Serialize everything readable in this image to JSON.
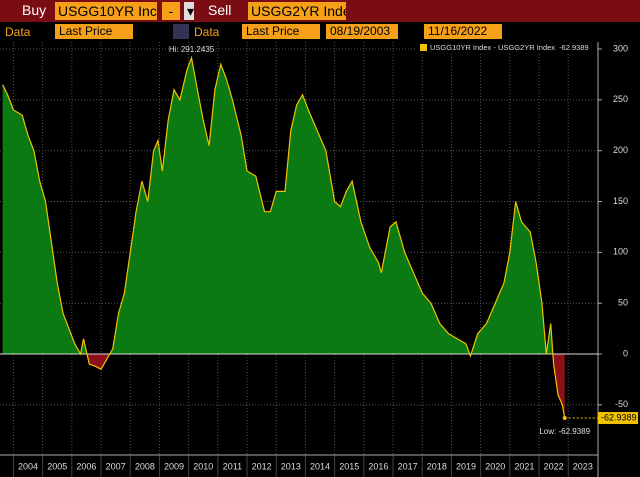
{
  "toolbar": {
    "buy_label": "Buy",
    "buy_ticker": "USGG10YR Inc",
    "operator": "-",
    "sell_label": "Sell",
    "sell_ticker": "USGG2YR Inde",
    "data_label_1": "Data",
    "field_1": "Last Price",
    "data_label_2": "Data",
    "field_2": "Last Price",
    "start_date": "08/19/2003",
    "end_date": "11/16/2022"
  },
  "chart_data": {
    "type": "area",
    "x": [
      2003.63,
      2003.8,
      2004.0,
      2004.3,
      2004.5,
      2004.7,
      2004.9,
      2005.1,
      2005.3,
      2005.5,
      2005.7,
      2005.9,
      2006.1,
      2006.3,
      2006.4,
      2006.6,
      2006.8,
      2007.0,
      2007.2,
      2007.4,
      2007.6,
      2007.8,
      2008.0,
      2008.2,
      2008.4,
      2008.6,
      2008.8,
      2008.95,
      2009.1,
      2009.3,
      2009.5,
      2009.7,
      2009.95,
      2010.1,
      2010.3,
      2010.5,
      2010.7,
      2010.9,
      2011.1,
      2011.3,
      2011.5,
      2011.8,
      2012.0,
      2012.3,
      2012.6,
      2012.8,
      2013.0,
      2013.3,
      2013.5,
      2013.7,
      2013.9,
      2014.1,
      2014.4,
      2014.7,
      2015.0,
      2015.2,
      2015.4,
      2015.6,
      2015.9,
      2016.2,
      2016.5,
      2016.6,
      2016.9,
      2017.1,
      2017.4,
      2017.7,
      2018.0,
      2018.3,
      2018.6,
      2018.9,
      2019.2,
      2019.5,
      2019.65,
      2019.9,
      2020.2,
      2020.5,
      2020.8,
      2021.0,
      2021.2,
      2021.4,
      2021.7,
      2021.9,
      2022.1,
      2022.25,
      2022.4,
      2022.5,
      2022.65,
      2022.8,
      2022.88
    ],
    "series": [
      {
        "name": "USGG10YR Index - USGG2YR Index",
        "color": "#f2c200",
        "legend_value": "-62.9389",
        "values": [
          265,
          255,
          240,
          235,
          215,
          200,
          170,
          150,
          110,
          70,
          40,
          25,
          10,
          0,
          15,
          -10,
          -12,
          -15,
          -5,
          5,
          40,
          60,
          100,
          140,
          170,
          150,
          200,
          210,
          180,
          230,
          260,
          250,
          280,
          291.2435,
          260,
          230,
          205,
          260,
          285,
          270,
          250,
          215,
          180,
          175,
          140,
          140,
          160,
          160,
          220,
          245,
          255,
          240,
          220,
          200,
          150,
          145,
          160,
          170,
          130,
          105,
          90,
          80,
          125,
          130,
          100,
          80,
          60,
          50,
          30,
          20,
          15,
          10,
          -2,
          20,
          30,
          50,
          70,
          100,
          150,
          130,
          120,
          90,
          50,
          0,
          30,
          -10,
          -40,
          -50,
          -62.9389
        ]
      }
    ],
    "annotations": {
      "high": "Hi: 291.2435",
      "low": "Low: -62.9389",
      "last": "-62.9389"
    },
    "above_color": "#0b7a12",
    "below_color": "#8b1018",
    "xlim": [
      2003.54,
      2024.02
    ],
    "xticks": [
      2004,
      2005,
      2006,
      2007,
      2008,
      2009,
      2010,
      2011,
      2012,
      2013,
      2014,
      2015,
      2016,
      2017,
      2018,
      2019,
      2020,
      2021,
      2022,
      2023
    ],
    "ylim": [
      -99.3,
      306.9
    ],
    "yticks": [
      -50,
      0,
      50,
      100,
      150,
      200,
      250,
      300
    ],
    "grid": true
  }
}
